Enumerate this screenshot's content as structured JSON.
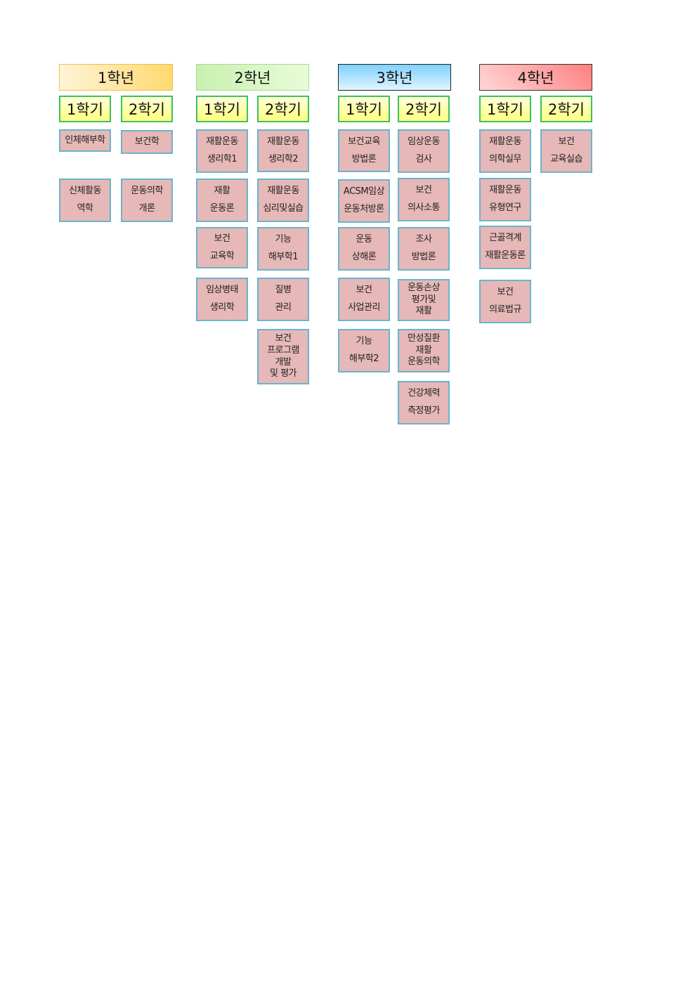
{
  "years": [
    {
      "label": "1학년",
      "bg": "linear-gradient(90deg,#fff4d8,#ffd870)",
      "border": "#f0c040"
    },
    {
      "label": "2학년",
      "bg": "linear-gradient(90deg,#c8f0b0,#e8fcd8)",
      "border": "#a8dc90"
    },
    {
      "label": "3학년",
      "bg": "linear-gradient(#80d0ff,#e0f4ff)",
      "border": "#222222"
    },
    {
      "label": "4학년",
      "bg": "linear-gradient(45deg,#ffd8d8,#ff8080)",
      "border": "#333333"
    }
  ],
  "semester_labels": [
    "1학기",
    "2학기"
  ],
  "columns": [
    {
      "courses": [
        [
          "인체해부학"
        ],
        [
          "신체활동",
          "역학"
        ]
      ]
    },
    {
      "courses": [
        [
          "보건학"
        ],
        [
          "운동의학",
          "개론"
        ]
      ]
    },
    {
      "courses": [
        [
          "재활운동",
          "생리학1"
        ],
        [
          "재활",
          "운동론"
        ],
        [
          "보건",
          "교육학"
        ],
        [
          "임상병태",
          "생리학"
        ]
      ]
    },
    {
      "courses": [
        [
          "재활운동",
          "생리학2"
        ],
        [
          "재활운동",
          "심리및실습"
        ],
        [
          "기능",
          "해부학1"
        ],
        [
          "질병",
          "관리"
        ],
        [
          "보건",
          "프로그램",
          "개발",
          "및 평가"
        ]
      ]
    },
    {
      "courses": [
        [
          "보건교육",
          "방법론"
        ],
        [
          "ACSM임상",
          "운동처방론"
        ],
        [
          "운동",
          "상해론"
        ],
        [
          "보건",
          "사업관리"
        ],
        [
          "기능",
          "해부학2"
        ]
      ]
    },
    {
      "courses": [
        [
          "임상운동",
          "검사"
        ],
        [
          "보건",
          "의사소통"
        ],
        [
          "조사",
          "방법론"
        ],
        [
          "운동손상",
          "평가및",
          "재활"
        ],
        [
          "만성질환",
          "재활",
          "운동의학"
        ],
        [
          "건강체력",
          "측정평가"
        ]
      ]
    },
    {
      "courses": [
        [
          "재활운동",
          "의학실무"
        ],
        [
          "재활운동",
          "유형연구"
        ],
        [
          "근골격계",
          "재활운동론"
        ],
        [
          "보건",
          "의료법규"
        ]
      ]
    },
    {
      "courses": [
        [
          "보건",
          "교육실습"
        ]
      ]
    }
  ]
}
